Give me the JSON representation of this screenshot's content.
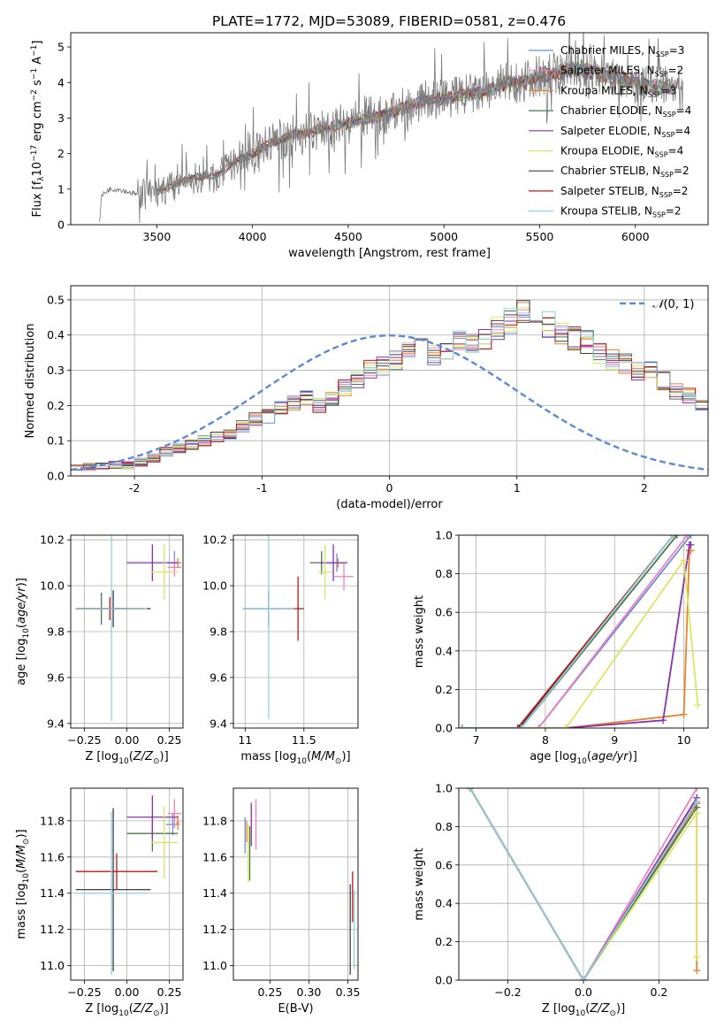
{
  "figure_title": "PLATE=1772, MJD=53089, FIBERID=0581, z=0.476",
  "colors": {
    "Chabrier MILES": "#6a8fd8",
    "Salpeter MILES": "#f080c0",
    "Kroupa MILES": "#e8842c",
    "Chabrier ELODIE": "#4a7a4a",
    "Salpeter ELODIE": "#8a30b0",
    "Kroupa ELODIE": "#d8e860",
    "Chabrier STELIB": "#404040",
    "Salpeter STELIB": "#c01818",
    "Kroupa STELIB": "#90d0e0",
    "gaussian": "#5b8ad8"
  },
  "chart_data": [
    {
      "id": "spectrum",
      "type": "line",
      "xlabel": "wavelength [Angstrom, rest frame]",
      "ylabel": "Flux [f_λ 10^-17 erg cm^-2 s^-1 A^-1]",
      "xlim": [
        3050,
        6380
      ],
      "ylim": [
        0,
        5.4
      ],
      "xticks": [
        3500,
        4000,
        4500,
        5000,
        5500,
        6000
      ],
      "yticks": [
        0,
        1,
        2,
        3,
        4,
        5
      ],
      "legend_position": "upper-right",
      "legend": [
        {
          "label": "Chabrier MILES, N_SSP=3",
          "color": "#6a8fd8"
        },
        {
          "label": "Salpeter MILES, N_SSP=2",
          "color": "#f080c0"
        },
        {
          "label": "Kroupa MILES, N_SSP=3",
          "color": "#e8842c"
        },
        {
          "label": "Chabrier ELODIE, N_SSP=4",
          "color": "#4a7a4a"
        },
        {
          "label": "Salpeter ELODIE, N_SSP=4",
          "color": "#8a30b0"
        },
        {
          "label": "Kroupa ELODIE, N_SSP=4",
          "color": "#d8e860"
        },
        {
          "label": "Chabrier STELIB, N_SSP=2",
          "color": "#404040"
        },
        {
          "label": "Salpeter STELIB, N_SSP=2",
          "color": "#c01818"
        },
        {
          "label": "Kroupa STELIB, N_SSP=2",
          "color": "#90d0e0"
        }
      ],
      "data_continuum": {
        "x": [
          3200,
          3210,
          3250,
          3300,
          3400,
          3500,
          3600,
          3700,
          3800,
          3900,
          4000,
          4100,
          4200,
          4300,
          4400,
          4500,
          4600,
          4700,
          4800,
          4900,
          5000,
          5100,
          5200,
          5300,
          5400,
          5500,
          5600,
          5700,
          5800,
          5900,
          6000,
          6100,
          6200,
          6250
        ],
        "y": [
          0,
          0.8,
          1.0,
          1.0,
          0.85,
          0.9,
          1.1,
          1.3,
          1.3,
          1.7,
          2.0,
          2.3,
          2.5,
          2.6,
          2.75,
          2.85,
          3.0,
          3.1,
          3.3,
          3.5,
          3.55,
          3.65,
          3.7,
          3.95,
          4.0,
          4.2,
          4.3,
          4.4,
          4.25,
          4.15,
          4.0,
          3.9,
          3.85,
          3.8
        ]
      },
      "model_continuum": {
        "x": [
          3500,
          3600,
          3700,
          3800,
          3900,
          4000,
          4100,
          4200,
          4300,
          4400,
          4500,
          4600,
          4700,
          4800,
          4900,
          5000,
          5100,
          5200,
          5300,
          5400,
          5500,
          5600,
          5700,
          5800,
          5900,
          6000,
          6100,
          6200
        ],
        "y": [
          0.9,
          1.15,
          1.35,
          1.35,
          1.75,
          2.0,
          2.3,
          2.5,
          2.6,
          2.75,
          2.85,
          3.0,
          3.1,
          3.3,
          3.5,
          3.55,
          3.65,
          3.7,
          3.95,
          4.0,
          4.2,
          4.3,
          4.4,
          4.25,
          4.15,
          4.0,
          3.9,
          3.85
        ]
      }
    },
    {
      "id": "residual_hist",
      "type": "histogram",
      "xlabel": "(data-model)/error",
      "ylabel": "Normed distribution",
      "xlim": [
        -2.5,
        2.5
      ],
      "ylim": [
        0,
        0.54
      ],
      "xticks": [
        -2,
        -1,
        0,
        1,
        2
      ],
      "yticks": [
        0.0,
        0.1,
        0.2,
        0.3,
        0.4,
        0.5
      ],
      "grid": true,
      "legend_position": "upper-right",
      "legend_label": "N(0,1)",
      "bin_width": 0.1,
      "bin_start": -2.5,
      "base_values": [
        0.02,
        0.025,
        0.025,
        0.03,
        0.03,
        0.04,
        0.05,
        0.07,
        0.08,
        0.09,
        0.1,
        0.11,
        0.12,
        0.14,
        0.16,
        0.17,
        0.19,
        0.21,
        0.22,
        0.2,
        0.22,
        0.25,
        0.27,
        0.3,
        0.31,
        0.33,
        0.35,
        0.37,
        0.34,
        0.36,
        0.39,
        0.37,
        0.39,
        0.42,
        0.44,
        0.46,
        0.45,
        0.43,
        0.41,
        0.39,
        0.38,
        0.35,
        0.33,
        0.32,
        0.3,
        0.3,
        0.27,
        0.24,
        0.23,
        0.2,
        0.18,
        0.15,
        0.14,
        0.12,
        0.1,
        0.09,
        0.08,
        0.07,
        0.06,
        0.05,
        0.045,
        0.04,
        0.035,
        0.03,
        0.03,
        0.025,
        0.02,
        0.02,
        0.02,
        0.02
      ]
    },
    {
      "id": "age_vs_Z",
      "type": "errorbar",
      "xlabel": "Z [log10(Z/Z_sun)]",
      "ylabel": "age [log10(age/yr)]",
      "xlim": [
        -0.33,
        0.33
      ],
      "ylim": [
        9.38,
        10.22
      ],
      "xticks": [
        -0.25,
        0.0,
        0.25
      ],
      "xticklabels": [
        "−0.25",
        "0.00",
        "0.25"
      ],
      "yticks": [
        9.4,
        9.6,
        9.8,
        10.0,
        10.2
      ],
      "grid": true,
      "points": [
        {
          "model": "Chabrier MILES",
          "x": 0.28,
          "y": 10.1,
          "xerr": 0.04,
          "yerr": 0.05
        },
        {
          "model": "Salpeter MILES",
          "x": 0.28,
          "y": 10.08,
          "xerr": 0.04,
          "yerr": 0.04
        },
        {
          "model": "Kroupa MILES",
          "x": 0.3,
          "y": 10.1,
          "xerr": 0.01,
          "yerr": 0.02
        },
        {
          "model": "Chabrier ELODIE",
          "x": -0.15,
          "y": 9.9,
          "xerr": 0.15,
          "yerr": 0.07
        },
        {
          "model": "Salpeter ELODIE",
          "x": 0.15,
          "y": 10.1,
          "xerr": 0.15,
          "yerr": 0.08
        },
        {
          "model": "Kroupa ELODIE",
          "x": 0.22,
          "y": 10.06,
          "xerr": 0.08,
          "yerr": 0.12
        },
        {
          "model": "Chabrier STELIB",
          "x": -0.08,
          "y": 9.9,
          "xerr": 0.22,
          "yerr": 0.08
        },
        {
          "model": "Salpeter STELIB",
          "x": -0.1,
          "y": 9.9,
          "xerr": 0.2,
          "yerr": 0.05
        },
        {
          "model": "Kroupa STELIB",
          "x": -0.09,
          "y": 9.9,
          "xerr": 0.21,
          "yerr": 0.49
        }
      ]
    },
    {
      "id": "age_vs_mass",
      "type": "errorbar",
      "xlabel": "mass [log10(M/M_sun)]",
      "ylabel": "",
      "xlim": [
        10.9,
        11.96
      ],
      "ylim": [
        9.38,
        10.22
      ],
      "xticks": [
        11.0,
        11.5
      ],
      "yticks": [
        9.4,
        9.6,
        9.8,
        10.0,
        10.2
      ],
      "grid": true,
      "points": [
        {
          "model": "Chabrier MILES",
          "x": 11.78,
          "y": 10.1,
          "xerr": 0.06,
          "yerr": 0.04
        },
        {
          "model": "Salpeter MILES",
          "x": 11.84,
          "y": 10.04,
          "xerr": 0.08,
          "yerr": 0.06
        },
        {
          "model": "Kroupa MILES",
          "x": 11.79,
          "y": 10.1,
          "xerr": 0.04,
          "yerr": 0.02
        },
        {
          "model": "Chabrier ELODIE",
          "x": 11.65,
          "y": 10.1,
          "xerr": 0.1,
          "yerr": 0.05
        },
        {
          "model": "Salpeter ELODIE",
          "x": 11.75,
          "y": 10.1,
          "xerr": 0.12,
          "yerr": 0.08
        },
        {
          "model": "Kroupa ELODIE",
          "x": 11.68,
          "y": 10.06,
          "xerr": 0.06,
          "yerr": 0.12
        },
        {
          "model": "Chabrier STELIB",
          "x": 11.2,
          "y": 9.9,
          "xerr": 0.22,
          "yerr": 0.08
        },
        {
          "model": "Salpeter STELIB",
          "x": 11.45,
          "y": 9.9,
          "xerr": 0.05,
          "yerr": 0.14
        },
        {
          "model": "Kroupa STELIB",
          "x": 11.2,
          "y": 9.9,
          "xerr": 0.22,
          "yerr": 0.48
        }
      ]
    },
    {
      "id": "cumulative_age",
      "type": "line",
      "xlabel": "age [log10(age/yr)]",
      "ylabel": "mass weight",
      "xlim": [
        6.75,
        10.35
      ],
      "ylim": [
        0,
        1.0
      ],
      "xticks": [
        7,
        8,
        9,
        10
      ],
      "yticks": [
        0.0,
        0.2,
        0.4,
        0.6,
        0.8,
        1.0
      ],
      "grid": true,
      "series": [
        {
          "model": "Chabrier MILES",
          "x": [
            6.8,
            7.9,
            10.1
          ],
          "y": [
            0,
            0,
            1.0
          ]
        },
        {
          "model": "Salpeter MILES",
          "x": [
            6.8,
            7.9,
            10.05
          ],
          "y": [
            0,
            0,
            1.0
          ]
        },
        {
          "model": "Kroupa MILES",
          "x": [
            6.8,
            8.3,
            10.0,
            10.08,
            10.1
          ],
          "y": [
            0,
            0,
            0.07,
            0.92,
            0.92
          ]
        },
        {
          "model": "Chabrier ELODIE",
          "x": [
            6.8,
            7.65,
            9.9
          ],
          "y": [
            0,
            0,
            1.0
          ]
        },
        {
          "model": "Salpeter ELODIE",
          "x": [
            6.8,
            8.3,
            9.7,
            10.08,
            10.1
          ],
          "y": [
            0,
            0,
            0.04,
            0.95,
            0.95
          ]
        },
        {
          "model": "Kroupa ELODIE",
          "x": [
            6.8,
            8.3,
            10.0,
            10.2
          ],
          "y": [
            0,
            0,
            0.87,
            0.12
          ]
        },
        {
          "model": "Chabrier STELIB",
          "x": [
            6.8,
            7.62,
            9.85
          ],
          "y": [
            0,
            0,
            1.0
          ]
        },
        {
          "model": "Salpeter STELIB",
          "x": [
            6.8,
            7.6,
            9.85
          ],
          "y": [
            0,
            0,
            1.0
          ]
        },
        {
          "model": "Kroupa STELIB",
          "x": [
            6.8,
            7.65,
            9.85
          ],
          "y": [
            0,
            0,
            1.0
          ]
        }
      ]
    },
    {
      "id": "mass_vs_Z",
      "type": "errorbar",
      "xlabel": "Z [log10(Z/Z_sun)]",
      "ylabel": "mass [log10(M/M_sun)]",
      "xlim": [
        -0.33,
        0.33
      ],
      "ylim": [
        10.92,
        11.98
      ],
      "xticks": [
        -0.25,
        0.0,
        0.25
      ],
      "xticklabels": [
        "−0.25",
        "0.00",
        "0.25"
      ],
      "yticks": [
        11.0,
        11.2,
        11.4,
        11.6,
        11.8
      ],
      "grid": true,
      "points": [
        {
          "model": "Chabrier MILES",
          "x": 0.27,
          "y": 11.78,
          "xerr": 0.04,
          "yerr": 0.06
        },
        {
          "model": "Salpeter MILES",
          "x": 0.28,
          "y": 11.84,
          "xerr": 0.04,
          "yerr": 0.08
        },
        {
          "model": "Kroupa MILES",
          "x": 0.3,
          "y": 11.79,
          "xerr": 0.01,
          "yerr": 0.04
        },
        {
          "model": "Chabrier ELODIE",
          "x": 0.15,
          "y": 11.73,
          "xerr": 0.15,
          "yerr": 0.1
        },
        {
          "model": "Salpeter ELODIE",
          "x": 0.15,
          "y": 11.82,
          "xerr": 0.15,
          "yerr": 0.12
        },
        {
          "model": "Kroupa ELODIE",
          "x": 0.22,
          "y": 11.68,
          "xerr": 0.08,
          "yerr": 0.2
        },
        {
          "model": "Chabrier STELIB",
          "x": -0.08,
          "y": 11.42,
          "xerr": 0.22,
          "yerr": 0.45
        },
        {
          "model": "Salpeter STELIB",
          "x": -0.06,
          "y": 11.52,
          "xerr": 0.24,
          "yerr": 0.1
        },
        {
          "model": "Kroupa STELIB",
          "x": -0.09,
          "y": 11.4,
          "xerr": 0.21,
          "yerr": 0.45
        }
      ]
    },
    {
      "id": "mass_vs_EBV",
      "type": "errorbar",
      "xlabel": "E(B-V)",
      "ylabel": "",
      "xlim": [
        0.203,
        0.363
      ],
      "ylim": [
        10.92,
        11.98
      ],
      "xticks": [
        0.25,
        0.3,
        0.35
      ],
      "xticklabels": [
        "0.25",
        "0.30",
        "0.35"
      ],
      "yticks": [
        11.0,
        11.2,
        11.4,
        11.6,
        11.8
      ],
      "grid": true,
      "points": [
        {
          "model": "Chabrier MILES",
          "x": 0.218,
          "y": 11.72,
          "xerr": 0,
          "yerr": 0.1
        },
        {
          "model": "Salpeter MILES",
          "x": 0.232,
          "y": 11.78,
          "xerr": 0,
          "yerr": 0.14
        },
        {
          "model": "Kroupa MILES",
          "x": 0.22,
          "y": 11.74,
          "xerr": 0,
          "yerr": 0.06
        },
        {
          "model": "Chabrier ELODIE",
          "x": 0.224,
          "y": 11.62,
          "xerr": 0,
          "yerr": 0.15
        },
        {
          "model": "Salpeter ELODIE",
          "x": 0.226,
          "y": 11.78,
          "xerr": 0,
          "yerr": 0.12
        },
        {
          "model": "Kroupa ELODIE",
          "x": 0.222,
          "y": 11.62,
          "xerr": 0,
          "yerr": 0.16
        },
        {
          "model": "Chabrier STELIB",
          "x": 0.353,
          "y": 11.2,
          "xerr": 0,
          "yerr": 0.25
        },
        {
          "model": "Salpeter STELIB",
          "x": 0.356,
          "y": 11.38,
          "xerr": 0,
          "yerr": 0.14
        },
        {
          "model": "Kroupa STELIB",
          "x": 0.358,
          "y": 11.2,
          "xerr": 0,
          "yerr": 0.22
        }
      ]
    },
    {
      "id": "cumulative_Z",
      "type": "line",
      "xlabel": "Z [log10(Z/Z_sun)]",
      "ylabel": "mass weight",
      "xlim": [
        -0.33,
        0.33
      ],
      "ylim": [
        0,
        1.0
      ],
      "xticks": [
        -0.2,
        0.0,
        0.2
      ],
      "xticklabels": [
        "−0.2",
        "0.0",
        "0.2"
      ],
      "yticks": [
        0.0,
        0.2,
        0.4,
        0.6,
        0.8,
        1.0
      ],
      "grid": true,
      "series": [
        {
          "model": "Chabrier MILES",
          "x": [
            -0.3,
            0.0,
            0.3
          ],
          "y": [
            1.0,
            0.0,
            0.92
          ]
        },
        {
          "model": "Salpeter MILES",
          "x": [
            -0.3,
            0.0,
            0.3
          ],
          "y": [
            1.0,
            0.0,
            1.0
          ]
        },
        {
          "model": "Kroupa MILES",
          "x": [
            -0.3,
            0.0,
            0.3,
            0.3
          ],
          "y": [
            1.0,
            0.0,
            0.92,
            0.05
          ]
        },
        {
          "model": "Chabrier ELODIE",
          "x": [
            -0.3,
            0.0,
            0.3
          ],
          "y": [
            1.0,
            0.0,
            0.9
          ]
        },
        {
          "model": "Salpeter ELODIE",
          "x": [
            -0.3,
            0.0,
            0.3
          ],
          "y": [
            1.0,
            0.0,
            0.95
          ]
        },
        {
          "model": "Kroupa ELODIE",
          "x": [
            -0.3,
            0.0,
            0.3,
            0.3
          ],
          "y": [
            1.0,
            0.0,
            0.87,
            0.12
          ]
        },
        {
          "model": "Chabrier STELIB",
          "x": [
            -0.3,
            0.0,
            0.3
          ],
          "y": [
            1.0,
            0.0,
            0.93
          ]
        },
        {
          "model": "Salpeter STELIB",
          "x": [
            -0.3,
            0.0,
            0.3
          ],
          "y": [
            1.0,
            0.0,
            0.93
          ]
        },
        {
          "model": "Kroupa STELIB",
          "x": [
            -0.3,
            0.0,
            0.3
          ],
          "y": [
            1.0,
            0.0,
            0.93
          ]
        }
      ]
    }
  ]
}
